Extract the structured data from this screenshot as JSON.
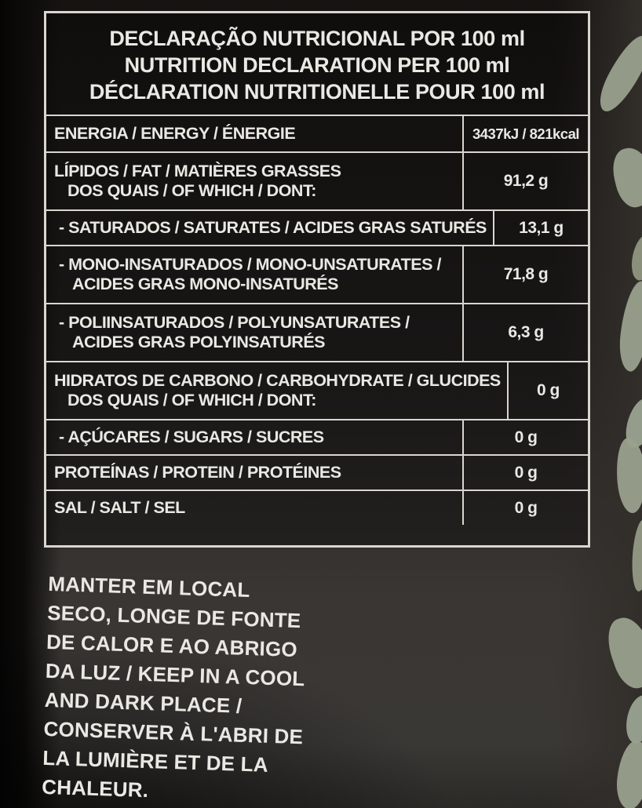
{
  "header": {
    "line1": "DECLARAÇÃO NUTRICIONAL POR 100 ml",
    "line2": "NUTRITION DECLARATION PER 100 ml",
    "line3": "DÉCLARATION NUTRITIONELLE POUR 100 ml"
  },
  "table": {
    "rows": [
      {
        "label": "ENERGIA / ENERGY / ÉNERGIE",
        "value": "3437kJ / 821kcal",
        "energy": true
      },
      {
        "label": "LÍPIDOS / FAT / MATIÈRES GRASSES",
        "label2": "DOS QUAIS / OF WHICH / DONT:",
        "value": "91,2 g"
      },
      {
        "label": "- SATURADOS / SATURATES / ACIDES GRAS SATURÉS",
        "value": "13,1 g",
        "indent": true
      },
      {
        "label": "- MONO-INSATURADOS / MONO-UNSATURATES /",
        "label2": "ACIDES GRAS MONO-INSATURÉS",
        "value": "71,8 g",
        "indent": true
      },
      {
        "label": "- POLIINSATURADOS / POLYUNSATURATES /",
        "label2": "ACIDES GRAS POLYINSATURÉS",
        "value": "6,3 g",
        "indent": true
      },
      {
        "label": "HIDRATOS DE CARBONO / CARBOHYDRATE / GLUCIDES",
        "label2": "DOS QUAIS / OF WHICH / DONT:",
        "value": "0 g"
      },
      {
        "label": "- AÇÚCARES / SUGARS / SUCRES",
        "value": "0 g",
        "indent": true
      },
      {
        "label": "PROTEÍNAS / PROTEIN / PROTÉINES",
        "value": "0 g"
      },
      {
        "label": "SAL / SALT / SEL",
        "value": "0 g"
      }
    ]
  },
  "storage": {
    "lines": [
      "MANTER EM LOCAL",
      "SECO, LONGE DE FONTE",
      "DE CALOR E AO ABRIGO",
      "DA LUZ / KEEP IN A COOL",
      "AND DARK PLACE /",
      "CONSERVER À L'ABRI DE",
      "LA LUMIÈRE ET DE LA",
      "CHALEUR."
    ]
  },
  "colors": {
    "text": "#eae8e3",
    "line": "#d9d6cf",
    "leaf": "#99a08d",
    "background": "#242120"
  }
}
